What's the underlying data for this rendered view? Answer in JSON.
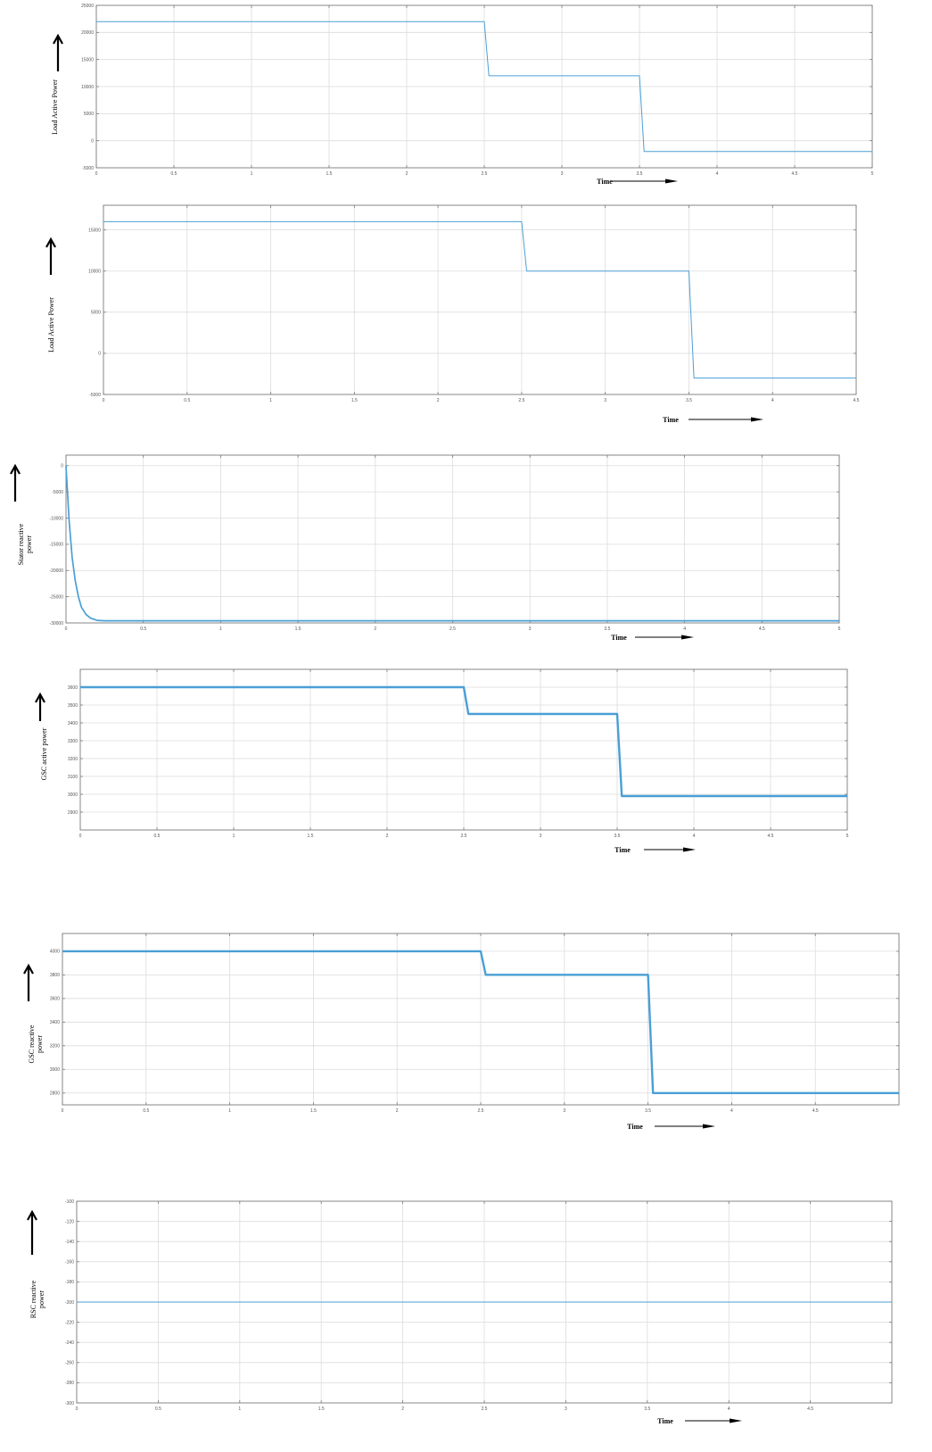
{
  "page": {
    "background": "#ffffff"
  },
  "style": {
    "line_color": "#4a9fd6",
    "grid_color": "#dcdcdc",
    "axis_color": "#7a7a7a"
  },
  "chart_data": [
    {
      "type": "line",
      "ylabel": "Load Active Power",
      "xlabel": "Time",
      "xlim": [
        0,
        5
      ],
      "ylim": [
        -5000,
        25000
      ],
      "xticks": [
        0,
        0.5,
        1,
        1.5,
        2,
        2.5,
        3,
        3.5,
        4,
        4.5,
        5
      ],
      "xtick_labels": [
        "0",
        "0.5",
        "1",
        "1.5",
        "2",
        "2.5",
        "3",
        "3.5",
        "4",
        "4.5",
        "5"
      ],
      "yticks": [
        -5000,
        0,
        5000,
        10000,
        15000,
        20000,
        25000
      ],
      "ytick_labels": [
        "-5000",
        "0",
        "5000",
        "10000",
        "15000",
        "20000",
        "25000"
      ],
      "grid": true,
      "line_width": "thin",
      "series": [
        {
          "x": [
            0,
            2.5,
            2.53,
            3.5,
            3.53,
            5
          ],
          "y": [
            22000,
            22000,
            12000,
            12000,
            -2000,
            -2000
          ]
        }
      ]
    },
    {
      "type": "line",
      "ylabel": "Load Active Power",
      "xlabel": "Time",
      "xlim": [
        0,
        4.5
      ],
      "ylim": [
        -5000,
        18000
      ],
      "xticks": [
        0,
        0.5,
        1,
        1.5,
        2,
        2.5,
        3,
        3.5,
        4,
        4.5
      ],
      "xtick_labels": [
        "0",
        "0.5",
        "1",
        "1.5",
        "2",
        "2.5",
        "3",
        "3.5",
        "4",
        "4.5"
      ],
      "yticks": [
        -5000,
        0,
        5000,
        10000,
        15000
      ],
      "ytick_labels": [
        "-5000",
        "0",
        "5000",
        "10000",
        "15000"
      ],
      "grid": true,
      "line_width": "thin",
      "series": [
        {
          "x": [
            0,
            2.5,
            2.53,
            3.5,
            3.53,
            4.5
          ],
          "y": [
            16000,
            16000,
            10000,
            10000,
            -3000,
            -3000
          ]
        }
      ]
    },
    {
      "type": "line",
      "ylabel": "Stator reactive power",
      "xlabel": "Time",
      "xlim": [
        0,
        5
      ],
      "ylim": [
        -30000,
        2000
      ],
      "xticks": [
        0,
        0.5,
        1,
        1.5,
        2,
        2.5,
        3,
        3.5,
        4,
        4.5,
        5
      ],
      "xtick_labels": [
        "0",
        "0.5",
        "1",
        "1.5",
        "2",
        "2.5",
        "3",
        "3.5",
        "4",
        "4.5",
        "5"
      ],
      "yticks": [
        0,
        -5000,
        -10000,
        -15000,
        -20000,
        -25000,
        -30000
      ],
      "ytick_labels": [
        "0",
        "-5000",
        "-10000",
        "-15000",
        "-20000",
        "-25000",
        "-30000"
      ],
      "grid": true,
      "line_width": "medium",
      "series": [
        {
          "x": [
            0,
            0.02,
            0.04,
            0.06,
            0.08,
            0.1,
            0.13,
            0.16,
            0.2,
            0.25,
            5
          ],
          "y": [
            0,
            -10500,
            -17500,
            -22000,
            -25000,
            -27000,
            -28400,
            -29100,
            -29500,
            -29600,
            -29600
          ]
        }
      ]
    },
    {
      "type": "line",
      "ylabel": "GSC active power",
      "xlabel": "Time",
      "xlim": [
        0,
        5
      ],
      "ylim": [
        2800,
        3700
      ],
      "xticks": [
        0,
        0.5,
        1,
        1.5,
        2,
        2.5,
        3,
        3.5,
        4,
        4.5,
        5
      ],
      "xtick_labels": [
        "0",
        "0.5",
        "1",
        "1.5",
        "2",
        "2.5",
        "3",
        "3.5",
        "4",
        "4.5",
        "5"
      ],
      "yticks": [
        2900,
        3000,
        3100,
        3200,
        3300,
        3400,
        3500,
        3600
      ],
      "ytick_labels": [
        "2900",
        "3000",
        "3100",
        "3200",
        "3300",
        "3400",
        "3500",
        "3600"
      ],
      "grid": true,
      "line_width": "thick",
      "series": [
        {
          "x": [
            0,
            2.5,
            2.53,
            3.5,
            3.53,
            5
          ],
          "y": [
            3600,
            3600,
            3450,
            3450,
            2990,
            2990
          ]
        }
      ]
    },
    {
      "type": "line",
      "ylabel": "GSC reactive power",
      "xlabel": "Time",
      "xlim": [
        0,
        5
      ],
      "ylim": [
        2700,
        4150
      ],
      "xticks": [
        0,
        0.5,
        1,
        1.5,
        2,
        2.5,
        3,
        3.5,
        4,
        4.5
      ],
      "xtick_labels": [
        "0",
        "0.5",
        "1",
        "1.5",
        "2",
        "2.5",
        "3",
        "3.5",
        "4",
        "4.5"
      ],
      "yticks": [
        2800,
        3000,
        3200,
        3400,
        3600,
        3800,
        4000
      ],
      "ytick_labels": [
        "2800",
        "3000",
        "3200",
        "3400",
        "3600",
        "3800",
        "4000"
      ],
      "grid": true,
      "line_width": "thick",
      "series": [
        {
          "x": [
            0,
            2.5,
            2.53,
            3.5,
            3.53,
            5
          ],
          "y": [
            4000,
            4000,
            3800,
            3800,
            2800,
            2800
          ]
        }
      ]
    },
    {
      "type": "line",
      "ylabel": "RSC reactive power",
      "xlabel": "Time",
      "xlim": [
        0,
        5
      ],
      "ylim": [
        -300,
        -100
      ],
      "xticks": [
        0,
        0.5,
        1,
        1.5,
        2,
        2.5,
        3,
        3.5,
        4,
        4.5
      ],
      "xtick_labels": [
        "0",
        "0.5",
        "1",
        "1.5",
        "2",
        "2.5",
        "3",
        "3.5",
        "4",
        "4.5"
      ],
      "yticks": [
        -100,
        -120,
        -140,
        -160,
        -180,
        -200,
        -220,
        -240,
        -260,
        -280,
        -300
      ],
      "ytick_labels": [
        "-100",
        "-120",
        "-140",
        "-160",
        "-180",
        "-200",
        "-220",
        "-240",
        "-260",
        "-280",
        "-300"
      ],
      "grid": true,
      "line_width": "thin",
      "series": [
        {
          "x": [
            0,
            5
          ],
          "y": [
            -200,
            -200
          ]
        }
      ]
    }
  ]
}
